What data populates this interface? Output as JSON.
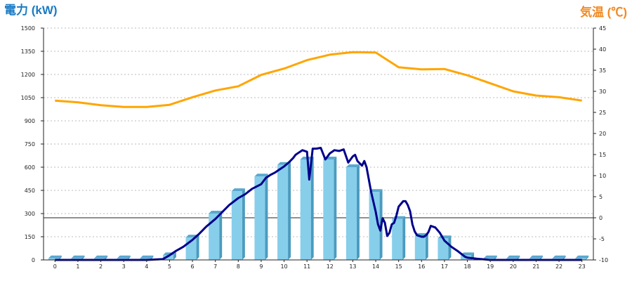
{
  "chart_data": {
    "type": "bar",
    "title_left": "電力 (kW)",
    "title_right": "気温 (℃)",
    "colors": {
      "bar_front": "#87ceeb",
      "bar_side": "#4a9bbf",
      "bar_top": "#5aa8cf",
      "power_line": "#00008b",
      "temp_line": "#ffa500",
      "title_left": "#1a7bc4",
      "title_right": "#f08a24",
      "grid": "#bbbbbb"
    },
    "grid": true,
    "y_left": {
      "min": 0,
      "max": 1500,
      "ticks": [
        "0",
        "150",
        "300",
        "450",
        "600",
        "750",
        "900",
        "1050",
        "1200",
        "1350",
        "1500"
      ]
    },
    "y_right": {
      "min": -10,
      "max": 45,
      "ticks": [
        "-10",
        "-5",
        "0",
        "5",
        "10",
        "15",
        "20",
        "25",
        "30",
        "35",
        "40",
        "45"
      ]
    },
    "categories": [
      "0",
      "1",
      "2",
      "3",
      "4",
      "5",
      "6",
      "7",
      "8",
      "9",
      "10",
      "11",
      "12",
      "13",
      "14",
      "15",
      "16",
      "17",
      "18",
      "19",
      "20",
      "21",
      "22",
      "23"
    ],
    "hourly_power": [
      10,
      10,
      10,
      10,
      10,
      30,
      145,
      300,
      445,
      540,
      615,
      650,
      650,
      600,
      440,
      265,
      155,
      140,
      30,
      10,
      10,
      10,
      10,
      10
    ],
    "power_curve": {
      "x": [
        0,
        1,
        2,
        3,
        4,
        4.7,
        5,
        5.3,
        5.6,
        6,
        6.3,
        6.6,
        7,
        7.3,
        7.6,
        8,
        8.3,
        8.6,
        9,
        9.2,
        9.4,
        9.6,
        9.8,
        10,
        10.2,
        10.4,
        10.5,
        10.6,
        10.8,
        11,
        11.1,
        11.25,
        11.4,
        11.6,
        11.8,
        12,
        12.2,
        12.4,
        12.6,
        12.8,
        13,
        13.1,
        13.2,
        13.4,
        13.5,
        13.6,
        13.8,
        14,
        14.1,
        14.2,
        14.3,
        14.4,
        14.5,
        14.6,
        14.7,
        14.8,
        14.9,
        15,
        15.2,
        15.3,
        15.4,
        15.5,
        15.6,
        15.7,
        15.8,
        16,
        16.1,
        16.2,
        16.3,
        16.4,
        16.6,
        16.8,
        17,
        17.3,
        17.6,
        17.9,
        18,
        18.4,
        19,
        20,
        21,
        22,
        23
      ],
      "y": [
        0,
        0,
        0,
        0,
        0,
        5,
        30,
        60,
        85,
        130,
        170,
        215,
        265,
        310,
        355,
        400,
        425,
        460,
        490,
        530,
        550,
        565,
        585,
        605,
        630,
        660,
        680,
        690,
        710,
        700,
        520,
        720,
        720,
        725,
        650,
        690,
        710,
        705,
        715,
        630,
        670,
        680,
        640,
        610,
        640,
        600,
        440,
        310,
        230,
        190,
        270,
        240,
        155,
        175,
        230,
        240,
        285,
        345,
        380,
        380,
        355,
        315,
        230,
        185,
        160,
        150,
        150,
        160,
        180,
        220,
        210,
        175,
        125,
        85,
        55,
        20,
        15,
        8,
        0,
        0,
        0,
        0,
        0
      ]
    },
    "temperature_curve": {
      "x": [
        0,
        1,
        2,
        3,
        4,
        5,
        6,
        7,
        8,
        9,
        10,
        11,
        12,
        13,
        14,
        15,
        16,
        17,
        18,
        19,
        20,
        21,
        22,
        23
      ],
      "y": [
        27.8,
        27.4,
        26.7,
        26.3,
        26.3,
        26.8,
        28.6,
        30.2,
        31.2,
        33.9,
        35.4,
        37.4,
        38.7,
        39.3,
        39.2,
        35.7,
        35.2,
        35.3,
        33.8,
        31.9,
        30.0,
        29.0,
        28.6,
        27.8
      ]
    }
  }
}
